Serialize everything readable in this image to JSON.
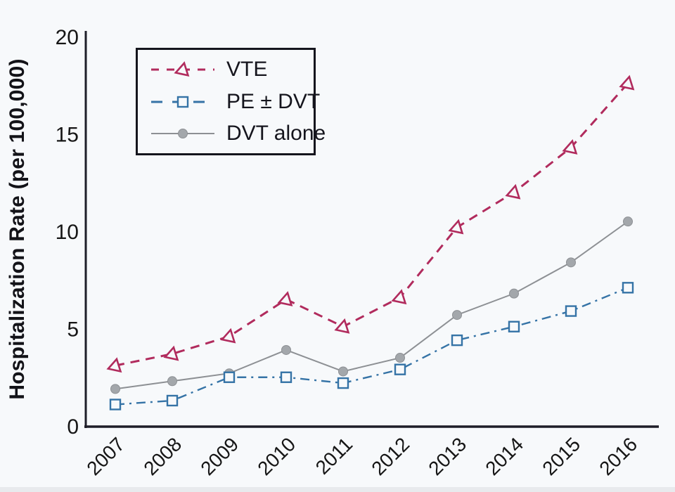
{
  "app": {
    "background_color": "#f7f9fb",
    "bottom_strip_color": "#e8eaed"
  },
  "chart_data": {
    "type": "line",
    "title": "",
    "xlabel": "",
    "ylabel": "Hospitalization Rate (per 100,000)",
    "ylim": [
      0,
      20
    ],
    "yticks": [
      0,
      5,
      10,
      15,
      20
    ],
    "grid": "off",
    "legend_position": "top-left",
    "axis_color": "#1e1e28",
    "text_color": "#161616",
    "categories": [
      "2007",
      "2008",
      "2009",
      "2010",
      "2011",
      "2012",
      "2013",
      "2014",
      "2015",
      "2016"
    ],
    "series": [
      {
        "name": "VTE",
        "color": "#b12b5d",
        "line_style": "dashed",
        "marker": "triangle-open",
        "values": [
          3.1,
          3.7,
          4.6,
          6.5,
          5.1,
          6.6,
          10.2,
          12.0,
          14.3,
          17.6
        ]
      },
      {
        "name": "PE ± DVT",
        "color": "#3573a6",
        "line_style": "dash-dot",
        "marker": "square-open",
        "values": [
          1.1,
          1.3,
          2.5,
          2.5,
          2.2,
          2.9,
          4.4,
          5.1,
          5.9,
          7.1
        ]
      },
      {
        "name": "DVT alone",
        "color": "#8d9094",
        "marker_color": "#a3a7ab",
        "line_style": "solid",
        "marker": "circle-filled",
        "values": [
          1.9,
          2.3,
          2.7,
          3.9,
          2.8,
          3.5,
          5.7,
          6.8,
          8.4,
          10.5
        ]
      }
    ]
  }
}
